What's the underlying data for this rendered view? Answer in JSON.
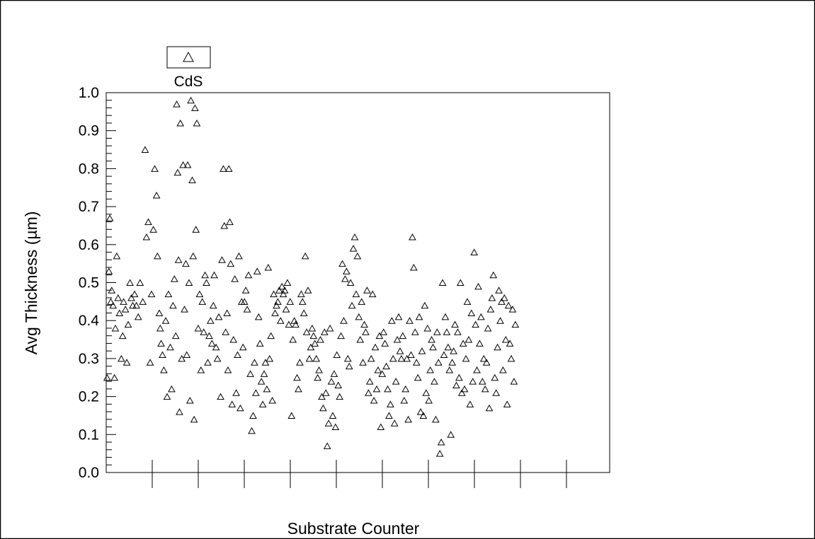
{
  "chart_data": {
    "type": "scatter",
    "title": "",
    "xlabel": "Substrate Counter",
    "ylabel": "Avg Thickness (µm)",
    "ylim": [
      0.0,
      1.0
    ],
    "yticks": [
      "0.0",
      "0.1",
      "0.2",
      "0.3",
      "0.4",
      "0.5",
      "0.6",
      "0.7",
      "0.8",
      "0.9",
      "1.0"
    ],
    "xlim": [
      0,
      1100
    ],
    "x_tick_labels": [],
    "grid": false,
    "legend": {
      "placement": "top-left",
      "entries": [
        {
          "name": "CdS",
          "marker": "open-triangle",
          "color": "#000000"
        }
      ]
    },
    "series": [
      {
        "name": "CdS",
        "points": [
          [
            2,
            0.25
          ],
          [
            6,
            0.53
          ],
          [
            8,
            0.67
          ],
          [
            10,
            0.45
          ],
          [
            12,
            0.48
          ],
          [
            15,
            0.44
          ],
          [
            18,
            0.25
          ],
          [
            20,
            0.38
          ],
          [
            23,
            0.57
          ],
          [
            26,
            0.46
          ],
          [
            29,
            0.42
          ],
          [
            33,
            0.3
          ],
          [
            36,
            0.36
          ],
          [
            38,
            0.45
          ],
          [
            42,
            0.43
          ],
          [
            45,
            0.29
          ],
          [
            48,
            0.39
          ],
          [
            52,
            0.5
          ],
          [
            55,
            0.46
          ],
          [
            58,
            0.44
          ],
          [
            62,
            0.47
          ],
          [
            66,
            0.44
          ],
          [
            70,
            0.41
          ],
          [
            74,
            0.5
          ],
          [
            80,
            0.45
          ],
          [
            85,
            0.85
          ],
          [
            88,
            0.62
          ],
          [
            92,
            0.66
          ],
          [
            96,
            0.29
          ],
          [
            99,
            0.47
          ],
          [
            103,
            0.64
          ],
          [
            106,
            0.8
          ],
          [
            110,
            0.73
          ],
          [
            112,
            0.57
          ],
          [
            116,
            0.42
          ],
          [
            118,
            0.38
          ],
          [
            120,
            0.34
          ],
          [
            123,
            0.31
          ],
          [
            126,
            0.27
          ],
          [
            130,
            0.4
          ],
          [
            133,
            0.2
          ],
          [
            136,
            0.47
          ],
          [
            140,
            0.33
          ],
          [
            143,
            0.22
          ],
          [
            146,
            0.44
          ],
          [
            149,
            0.51
          ],
          [
            152,
            0.36
          ],
          [
            154,
            0.97
          ],
          [
            156,
            0.79
          ],
          [
            158,
            0.56
          ],
          [
            160,
            0.16
          ],
          [
            162,
            0.92
          ],
          [
            165,
            0.3
          ],
          [
            168,
            0.81
          ],
          [
            171,
            0.43
          ],
          [
            174,
            0.55
          ],
          [
            176,
            0.31
          ],
          [
            178,
            0.81
          ],
          [
            181,
            0.5
          ],
          [
            183,
            0.19
          ],
          [
            185,
            0.98
          ],
          [
            188,
            0.77
          ],
          [
            190,
            0.57
          ],
          [
            192,
            0.14
          ],
          [
            194,
            0.96
          ],
          [
            196,
            0.64
          ],
          [
            198,
            0.92
          ],
          [
            201,
            0.38
          ],
          [
            204,
            0.47
          ],
          [
            207,
            0.27
          ],
          [
            210,
            0.45
          ],
          [
            213,
            0.37
          ],
          [
            216,
            0.52
          ],
          [
            219,
            0.5
          ],
          [
            222,
            0.29
          ],
          [
            225,
            0.36
          ],
          [
            228,
            0.4
          ],
          [
            231,
            0.34
          ],
          [
            234,
            0.44
          ],
          [
            236,
            0.52
          ],
          [
            240,
            0.33
          ],
          [
            243,
            0.3
          ],
          [
            246,
            0.41
          ],
          [
            250,
            0.2
          ],
          [
            253,
            0.56
          ],
          [
            256,
            0.8
          ],
          [
            258,
            0.65
          ],
          [
            261,
            0.37
          ],
          [
            264,
            0.42
          ],
          [
            266,
            0.27
          ],
          [
            268,
            0.8
          ],
          [
            270,
            0.66
          ],
          [
            272,
            0.55
          ],
          [
            275,
            0.18
          ],
          [
            278,
            0.35
          ],
          [
            281,
            0.51
          ],
          [
            284,
            0.21
          ],
          [
            287,
            0.31
          ],
          [
            290,
            0.57
          ],
          [
            293,
            0.17
          ],
          [
            296,
            0.45
          ],
          [
            299,
            0.33
          ],
          [
            302,
            0.45
          ],
          [
            305,
            0.48
          ],
          [
            308,
            0.43
          ],
          [
            311,
            0.52
          ],
          [
            315,
            0.26
          ],
          [
            318,
            0.11
          ],
          [
            321,
            0.15
          ],
          [
            324,
            0.29
          ],
          [
            327,
            0.21
          ],
          [
            330,
            0.53
          ],
          [
            333,
            0.41
          ],
          [
            336,
            0.34
          ],
          [
            339,
            0.24
          ],
          [
            342,
            0.18
          ],
          [
            345,
            0.26
          ],
          [
            348,
            0.29
          ],
          [
            351,
            0.22
          ],
          [
            354,
            0.54
          ],
          [
            357,
            0.3
          ],
          [
            360,
            0.36
          ],
          [
            363,
            0.19
          ],
          [
            366,
            0.47
          ],
          [
            369,
            0.42
          ],
          [
            372,
            0.44
          ],
          [
            375,
            0.45
          ],
          [
            378,
            0.48
          ],
          [
            381,
            0.4
          ],
          [
            384,
            0.49
          ],
          [
            387,
            0.47
          ],
          [
            390,
            0.48
          ],
          [
            393,
            0.43
          ],
          [
            396,
            0.5
          ],
          [
            399,
            0.39
          ],
          [
            402,
            0.45
          ],
          [
            405,
            0.15
          ],
          [
            408,
            0.35
          ],
          [
            411,
            0.4
          ],
          [
            414,
            0.39
          ],
          [
            417,
            0.25
          ],
          [
            420,
            0.22
          ],
          [
            423,
            0.29
          ],
          [
            426,
            0.47
          ],
          [
            429,
            0.45
          ],
          [
            432,
            0.42
          ],
          [
            435,
            0.57
          ],
          [
            438,
            0.37
          ],
          [
            441,
            0.48
          ],
          [
            444,
            0.3
          ],
          [
            447,
            0.33
          ],
          [
            450,
            0.38
          ],
          [
            453,
            0.36
          ],
          [
            456,
            0.34
          ],
          [
            459,
            0.3
          ],
          [
            462,
            0.25
          ],
          [
            465,
            0.27
          ],
          [
            468,
            0.35
          ],
          [
            471,
            0.2
          ],
          [
            474,
            0.17
          ],
          [
            477,
            0.37
          ],
          [
            480,
            0.21
          ],
          [
            483,
            0.07
          ],
          [
            486,
            0.13
          ],
          [
            489,
            0.38
          ],
          [
            492,
            0.24
          ],
          [
            495,
            0.15
          ],
          [
            498,
            0.26
          ],
          [
            501,
            0.12
          ],
          [
            504,
            0.31
          ],
          [
            507,
            0.23
          ],
          [
            510,
            0.2
          ],
          [
            513,
            0.36
          ],
          [
            516,
            0.55
          ],
          [
            519,
            0.4
          ],
          [
            522,
            0.51
          ],
          [
            525,
            0.53
          ],
          [
            528,
            0.3
          ],
          [
            531,
            0.28
          ],
          [
            534,
            0.5
          ],
          [
            537,
            0.44
          ],
          [
            540,
            0.59
          ],
          [
            543,
            0.62
          ],
          [
            546,
            0.47
          ],
          [
            549,
            0.57
          ],
          [
            552,
            0.41
          ],
          [
            555,
            0.35
          ],
          [
            558,
            0.45
          ],
          [
            561,
            0.29
          ],
          [
            564,
            0.39
          ],
          [
            567,
            0.37
          ],
          [
            570,
            0.48
          ],
          [
            573,
            0.21
          ],
          [
            576,
            0.24
          ],
          [
            579,
            0.3
          ],
          [
            582,
            0.47
          ],
          [
            585,
            0.19
          ],
          [
            588,
            0.33
          ],
          [
            591,
            0.22
          ],
          [
            594,
            0.27
          ],
          [
            597,
            0.36
          ],
          [
            600,
            0.12
          ],
          [
            603,
            0.26
          ],
          [
            606,
            0.37
          ],
          [
            609,
            0.34
          ],
          [
            612,
            0.28
          ],
          [
            615,
            0.22
          ],
          [
            618,
            0.15
          ],
          [
            621,
            0.18
          ],
          [
            624,
            0.4
          ],
          [
            627,
            0.3
          ],
          [
            630,
            0.13
          ],
          [
            633,
            0.24
          ],
          [
            636,
            0.35
          ],
          [
            639,
            0.41
          ],
          [
            642,
            0.32
          ],
          [
            645,
            0.3
          ],
          [
            648,
            0.36
          ],
          [
            651,
            0.19
          ],
          [
            654,
            0.22
          ],
          [
            657,
            0.3
          ],
          [
            660,
            0.14
          ],
          [
            663,
            0.4
          ],
          [
            666,
            0.31
          ],
          [
            669,
            0.62
          ],
          [
            672,
            0.54
          ],
          [
            675,
            0.37
          ],
          [
            678,
            0.29
          ],
          [
            681,
            0.25
          ],
          [
            684,
            0.41
          ],
          [
            687,
            0.16
          ],
          [
            690,
            0.32
          ],
          [
            693,
            0.15
          ],
          [
            696,
            0.44
          ],
          [
            699,
            0.21
          ],
          [
            702,
            0.38
          ],
          [
            705,
            0.19
          ],
          [
            708,
            0.27
          ],
          [
            711,
            0.35
          ],
          [
            714,
            0.33
          ],
          [
            717,
            0.24
          ],
          [
            720,
            0.14
          ],
          [
            723,
            0.37
          ],
          [
            726,
            0.29
          ],
          [
            729,
            0.05
          ],
          [
            732,
            0.08
          ],
          [
            735,
            0.5
          ],
          [
            738,
            0.31
          ],
          [
            741,
            0.41
          ],
          [
            744,
            0.37
          ],
          [
            747,
            0.33
          ],
          [
            750,
            0.27
          ],
          [
            753,
            0.1
          ],
          [
            756,
            0.29
          ],
          [
            759,
            0.32
          ],
          [
            762,
            0.39
          ],
          [
            765,
            0.23
          ],
          [
            768,
            0.37
          ],
          [
            771,
            0.25
          ],
          [
            774,
            0.5
          ],
          [
            777,
            0.21
          ],
          [
            780,
            0.34
          ],
          [
            783,
            0.22
          ],
          [
            786,
            0.3
          ],
          [
            789,
            0.45
          ],
          [
            792,
            0.35
          ],
          [
            795,
            0.18
          ],
          [
            798,
            0.42
          ],
          [
            801,
            0.24
          ],
          [
            804,
            0.58
          ],
          [
            807,
            0.39
          ],
          [
            810,
            0.27
          ],
          [
            813,
            0.49
          ],
          [
            816,
            0.34
          ],
          [
            819,
            0.41
          ],
          [
            822,
            0.24
          ],
          [
            825,
            0.3
          ],
          [
            828,
            0.22
          ],
          [
            831,
            0.29
          ],
          [
            834,
            0.38
          ],
          [
            837,
            0.17
          ],
          [
            840,
            0.43
          ],
          [
            843,
            0.46
          ],
          [
            846,
            0.52
          ],
          [
            849,
            0.25
          ],
          [
            852,
            0.21
          ],
          [
            855,
            0.33
          ],
          [
            858,
            0.48
          ],
          [
            861,
            0.4
          ],
          [
            864,
            0.45
          ],
          [
            867,
            0.27
          ],
          [
            870,
            0.46
          ],
          [
            873,
            0.35
          ],
          [
            876,
            0.18
          ],
          [
            879,
            0.44
          ],
          [
            882,
            0.34
          ],
          [
            885,
            0.3
          ],
          [
            888,
            0.43
          ],
          [
            891,
            0.24
          ],
          [
            894,
            0.39
          ]
        ]
      }
    ]
  },
  "colors": {
    "marker": "#000000",
    "axis": "#000000",
    "background": "#ffffff"
  }
}
